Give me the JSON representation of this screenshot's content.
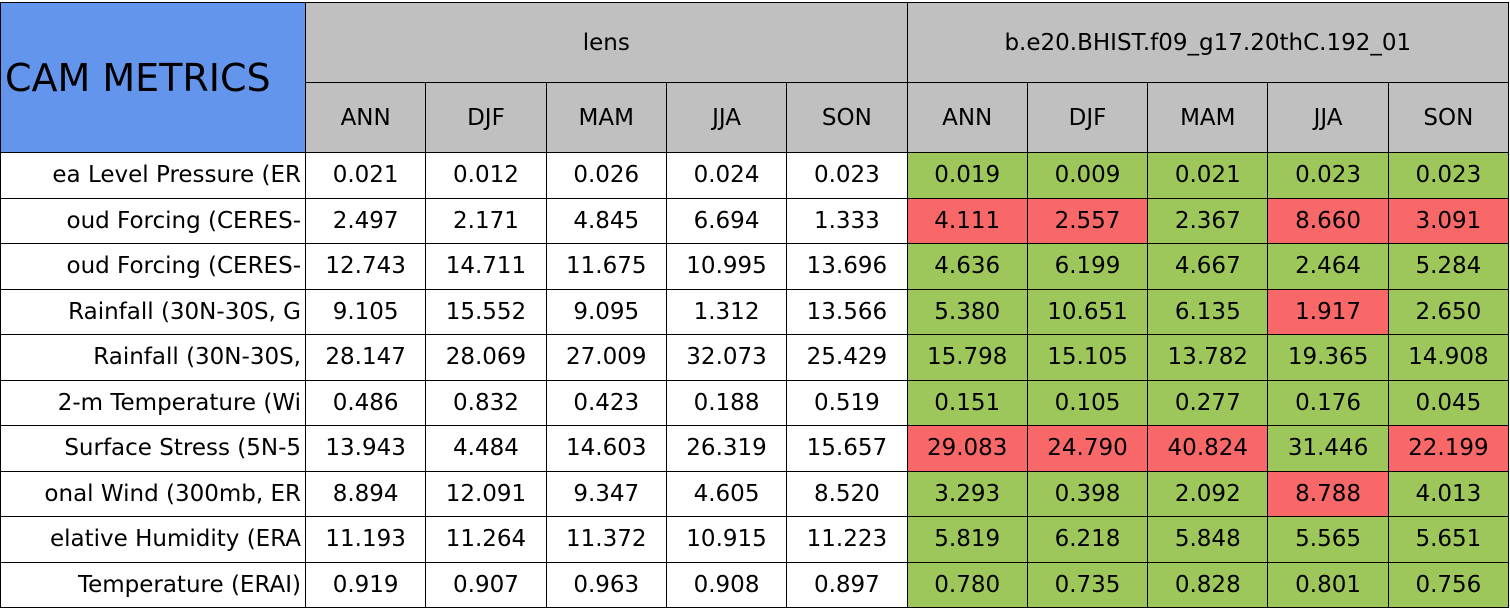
{
  "header": {
    "title": "CAM METRICS",
    "groups": [
      {
        "name": "lens",
        "seasons": [
          "ANN",
          "DJF",
          "MAM",
          "JJA",
          "SON"
        ]
      },
      {
        "name": "b.e20.BHIST.f09_g17.20thC.192_01",
        "seasons": [
          "ANN",
          "DJF",
          "MAM",
          "JJA",
          "SON"
        ]
      }
    ]
  },
  "rows": [
    {
      "label": "ea Level Pressure (ER",
      "cells": [
        "0.021",
        "0.012",
        "0.026",
        "0.024",
        "0.023",
        "0.019",
        "0.009",
        "0.021",
        "0.023",
        "0.023"
      ],
      "colors": [
        "#9dc75a",
        "#9dc75a",
        "#9dc75a",
        "#9dc75a",
        "#9dc75a"
      ]
    },
    {
      "label": "oud Forcing (CERES-",
      "cells": [
        "2.497",
        "2.171",
        "4.845",
        "6.694",
        "1.333",
        "4.111",
        "2.557",
        "2.367",
        "8.660",
        "3.091"
      ],
      "colors": [
        "#f86868",
        "#f86868",
        "#9dc75a",
        "#f86868",
        "#f86868"
      ]
    },
    {
      "label": "oud Forcing (CERES-",
      "cells": [
        "12.743",
        "14.711",
        "11.675",
        "10.995",
        "13.696",
        "4.636",
        "6.199",
        "4.667",
        "2.464",
        "5.284"
      ],
      "colors": [
        "#9dc75a",
        "#9dc75a",
        "#9dc75a",
        "#9dc75a",
        "#9dc75a"
      ]
    },
    {
      "label": "Rainfall (30N-30S, G",
      "cells": [
        "9.105",
        "15.552",
        "9.095",
        "1.312",
        "13.566",
        "5.380",
        "10.651",
        "6.135",
        "1.917",
        "2.650"
      ],
      "colors": [
        "#9dc75a",
        "#9dc75a",
        "#9dc75a",
        "#f86868",
        "#9dc75a"
      ]
    },
    {
      "label": "Rainfall (30N-30S,",
      "cells": [
        "28.147",
        "28.069",
        "27.009",
        "32.073",
        "25.429",
        "15.798",
        "15.105",
        "13.782",
        "19.365",
        "14.908"
      ],
      "colors": [
        "#9dc75a",
        "#9dc75a",
        "#9dc75a",
        "#9dc75a",
        "#9dc75a"
      ]
    },
    {
      "label": "2-m Temperature (Wi",
      "cells": [
        "0.486",
        "0.832",
        "0.423",
        "0.188",
        "0.519",
        "0.151",
        "0.105",
        "0.277",
        "0.176",
        "0.045"
      ],
      "colors": [
        "#9dc75a",
        "#9dc75a",
        "#9dc75a",
        "#9dc75a",
        "#9dc75a"
      ]
    },
    {
      "label": "Surface Stress (5N-5",
      "cells": [
        "13.943",
        "4.484",
        "14.603",
        "26.319",
        "15.657",
        "29.083",
        "24.790",
        "40.824",
        "31.446",
        "22.199"
      ],
      "colors": [
        "#f86868",
        "#f86868",
        "#f86868",
        "#9dc75a",
        "#f86868"
      ]
    },
    {
      "label": "onal Wind (300mb, ER",
      "cells": [
        "8.894",
        "12.091",
        "9.347",
        "4.605",
        "8.520",
        "3.293",
        "0.398",
        "2.092",
        "8.788",
        "4.013"
      ],
      "colors": [
        "#9dc75a",
        "#9dc75a",
        "#9dc75a",
        "#f86868",
        "#9dc75a"
      ]
    },
    {
      "label": "elative Humidity (ERA",
      "cells": [
        "11.193",
        "11.264",
        "11.372",
        "10.915",
        "11.223",
        "5.819",
        "6.218",
        "5.848",
        "5.565",
        "5.651"
      ],
      "colors": [
        "#9dc75a",
        "#9dc75a",
        "#9dc75a",
        "#9dc75a",
        "#9dc75a"
      ]
    },
    {
      "label": "Temperature (ERAI)",
      "cells": [
        "0.919",
        "0.907",
        "0.963",
        "0.908",
        "0.897",
        "0.780",
        "0.735",
        "0.828",
        "0.801",
        "0.756"
      ],
      "colors": [
        "#9dc75a",
        "#9dc75a",
        "#9dc75a",
        "#9dc75a",
        "#9dc75a"
      ]
    }
  ]
}
